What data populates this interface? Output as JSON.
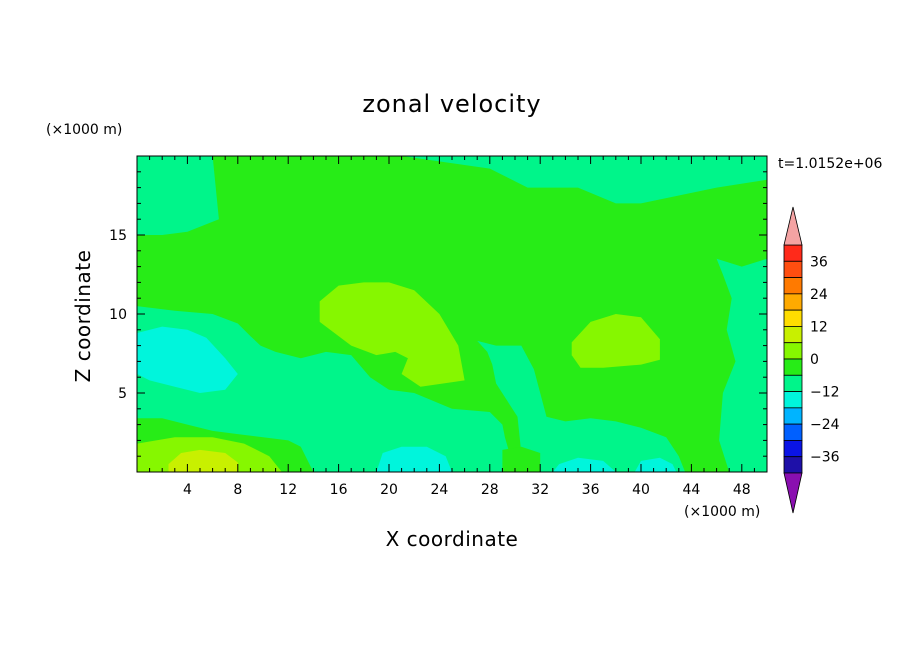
{
  "chart_data": {
    "type": "heatmap",
    "title": "zonal velocity",
    "xlabel": "X coordinate",
    "ylabel": "Z coordinate",
    "x_unit": "(×1000 m)",
    "y_unit": "(×1000 m)",
    "time_label": "t=1.0152e+06",
    "xlim": [
      0,
      50
    ],
    "ylim": [
      0,
      20
    ],
    "x_ticks": [
      4,
      8,
      12,
      16,
      20,
      24,
      28,
      32,
      36,
      40,
      44,
      48
    ],
    "y_ticks": [
      5,
      10,
      15
    ],
    "colorbar": {
      "range": [
        -42,
        42
      ],
      "tick_values": [
        36,
        24,
        12,
        0,
        -12,
        -24,
        -36
      ],
      "tick_labels": [
        "36",
        "24",
        "12",
        "0",
        "−12",
        "−24",
        "−36"
      ],
      "levels": [
        {
          "from": 36,
          "to": 42,
          "color": "#ff2a1a"
        },
        {
          "from": 30,
          "to": 36,
          "color": "#ff4e10"
        },
        {
          "from": 24,
          "to": 30,
          "color": "#ff7a00"
        },
        {
          "from": 18,
          "to": 24,
          "color": "#ffaa00"
        },
        {
          "from": 12,
          "to": 18,
          "color": "#ffdd00"
        },
        {
          "from": 6,
          "to": 12,
          "color": "#c8f000"
        },
        {
          "from": 0,
          "to": 6,
          "color": "#86f700"
        },
        {
          "from": -6,
          "to": 0,
          "color": "#27ec17"
        },
        {
          "from": -12,
          "to": -6,
          "color": "#00f58a"
        },
        {
          "from": -18,
          "to": -12,
          "color": "#00f5dc"
        },
        {
          "from": -24,
          "to": -18,
          "color": "#00b4ff"
        },
        {
          "from": -30,
          "to": -24,
          "color": "#0060ff"
        },
        {
          "from": -36,
          "to": -30,
          "color": "#0a14e6"
        },
        {
          "from": -42,
          "to": -36,
          "color": "#1e10a8"
        }
      ],
      "over_color": "#f4a3a3",
      "under_color": "#8a0fb0"
    },
    "background_value": -3,
    "regions": [
      {
        "value": -9,
        "poly": [
          [
            7,
            20
          ],
          [
            21,
            20
          ],
          [
            28,
            19.2
          ],
          [
            31,
            18
          ],
          [
            35,
            18
          ],
          [
            38,
            17
          ],
          [
            40,
            17
          ],
          [
            43,
            17.5
          ],
          [
            46,
            18
          ],
          [
            50,
            18.5
          ],
          [
            50,
            20
          ]
        ]
      },
      {
        "value": 3,
        "poly": [
          [
            14.5,
            10.8
          ],
          [
            16,
            11.8
          ],
          [
            18,
            12
          ],
          [
            20,
            12
          ],
          [
            22,
            11.5
          ],
          [
            24,
            10
          ],
          [
            25.5,
            8
          ],
          [
            26,
            5.8
          ],
          [
            22.5,
            5.4
          ],
          [
            21,
            6.2
          ],
          [
            21.5,
            7.2
          ],
          [
            20.5,
            7.6
          ],
          [
            19,
            7.4
          ],
          [
            17,
            8
          ],
          [
            14.5,
            9.5
          ]
        ]
      },
      {
        "value": 3,
        "poly": [
          [
            34.5,
            8.2
          ],
          [
            36,
            9.5
          ],
          [
            38,
            10
          ],
          [
            40,
            9.8
          ],
          [
            41.5,
            8.4
          ],
          [
            41.5,
            7.1
          ],
          [
            40,
            6.8
          ],
          [
            37,
            6.6
          ],
          [
            35.2,
            6.6
          ],
          [
            34.5,
            7.4
          ]
        ]
      },
      {
        "value": 3,
        "poly": [
          [
            21.2,
            4.2
          ],
          [
            22.2,
            4.2
          ],
          [
            22,
            3.6
          ],
          [
            21.2,
            3.7
          ]
        ]
      },
      {
        "value": -9,
        "poly": [
          [
            0,
            10.5
          ],
          [
            3,
            10.2
          ],
          [
            6,
            10
          ],
          [
            8,
            9.4
          ],
          [
            9,
            8.6
          ],
          [
            9.8,
            8
          ],
          [
            11,
            7.6
          ],
          [
            13,
            7.2
          ],
          [
            15,
            7.6
          ],
          [
            17,
            7.4
          ],
          [
            18.5,
            6
          ],
          [
            20,
            5.2
          ],
          [
            22,
            5
          ],
          [
            25,
            4
          ],
          [
            28,
            3.8
          ],
          [
            29,
            3
          ],
          [
            29.2,
            2.2
          ],
          [
            30,
            0
          ],
          [
            14,
            0
          ],
          [
            13,
            1.6
          ],
          [
            12,
            2
          ],
          [
            10,
            2.2
          ],
          [
            8,
            2.4
          ],
          [
            6,
            2.6
          ],
          [
            4,
            3
          ],
          [
            2,
            3.4
          ],
          [
            0,
            3.4
          ]
        ]
      },
      {
        "value": -9,
        "poly": [
          [
            27,
            8.3
          ],
          [
            28.5,
            8
          ],
          [
            30.5,
            8
          ],
          [
            31.5,
            6.5
          ],
          [
            32,
            5
          ],
          [
            32.5,
            3.5
          ],
          [
            34,
            3.2
          ],
          [
            36,
            3.4
          ],
          [
            38,
            3.2
          ],
          [
            40,
            2.8
          ],
          [
            42,
            2.2
          ],
          [
            43,
            1
          ],
          [
            43.5,
            0
          ],
          [
            31,
            0
          ],
          [
            30.5,
            1.2
          ],
          [
            30.2,
            3.5
          ],
          [
            28.5,
            5.6
          ],
          [
            28.2,
            6.8
          ],
          [
            27.8,
            7.6
          ]
        ]
      },
      {
        "value": -9,
        "poly": [
          [
            46,
            13.5
          ],
          [
            48,
            13
          ],
          [
            50,
            13.5
          ],
          [
            50,
            0
          ],
          [
            47,
            0
          ],
          [
            46.2,
            2
          ],
          [
            46.5,
            5
          ],
          [
            47.5,
            7
          ],
          [
            46.8,
            9
          ],
          [
            47.2,
            11
          ],
          [
            46.5,
            12.5
          ]
        ]
      },
      {
        "value": -9,
        "poly": [
          [
            0,
            20
          ],
          [
            6,
            20
          ],
          [
            6.5,
            16
          ],
          [
            4,
            15.2
          ],
          [
            2,
            15
          ],
          [
            0,
            15
          ]
        ]
      },
      {
        "value": -15,
        "poly": [
          [
            0,
            8.8
          ],
          [
            2,
            9.2
          ],
          [
            4,
            9
          ],
          [
            5.5,
            8.5
          ],
          [
            7,
            7.2
          ],
          [
            8,
            6.2
          ],
          [
            7,
            5.2
          ],
          [
            5,
            5
          ],
          [
            3,
            5.4
          ],
          [
            1,
            5.8
          ],
          [
            0,
            6.2
          ]
        ]
      },
      {
        "value": 3,
        "poly": [
          [
            0,
            1.8
          ],
          [
            3,
            2.2
          ],
          [
            6,
            2.2
          ],
          [
            8.5,
            1.8
          ],
          [
            10.5,
            1
          ],
          [
            11.5,
            0
          ],
          [
            0,
            0
          ]
        ]
      },
      {
        "value": 9,
        "poly": [
          [
            2.5,
            0.5
          ],
          [
            3.5,
            1.2
          ],
          [
            5,
            1.4
          ],
          [
            7,
            1.2
          ],
          [
            8,
            0.6
          ],
          [
            8,
            0
          ],
          [
            2.5,
            0
          ]
        ]
      },
      {
        "value": -15,
        "poly": [
          [
            19.5,
            1.2
          ],
          [
            21,
            1.6
          ],
          [
            23,
            1.6
          ],
          [
            24.5,
            1
          ],
          [
            25,
            0
          ],
          [
            19,
            0
          ]
        ]
      },
      {
        "value": -15,
        "poly": [
          [
            33.5,
            0.5
          ],
          [
            35,
            0.9
          ],
          [
            37,
            0.7
          ],
          [
            38,
            0
          ],
          [
            33,
            0
          ]
        ]
      },
      {
        "value": -15,
        "poly": [
          [
            40,
            0.7
          ],
          [
            41.5,
            0.9
          ],
          [
            42.5,
            0.5
          ],
          [
            42.8,
            0
          ],
          [
            39.5,
            0
          ]
        ]
      },
      {
        "value": -3,
        "poly": [
          [
            29,
            1.4
          ],
          [
            30.5,
            1.6
          ],
          [
            32,
            1.2
          ],
          [
            32,
            0
          ],
          [
            29,
            0
          ]
        ]
      }
    ]
  }
}
